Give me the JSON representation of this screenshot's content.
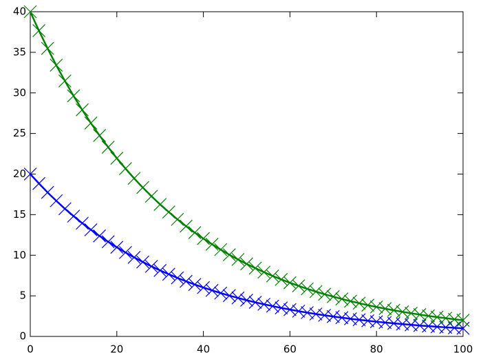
{
  "chart_data": {
    "type": "line",
    "x": [
      0,
      2,
      4,
      6,
      8,
      10,
      12,
      14,
      16,
      18,
      20,
      22,
      24,
      26,
      28,
      30,
      32,
      34,
      36,
      38,
      40,
      42,
      44,
      46,
      48,
      50,
      52,
      54,
      56,
      58,
      60,
      62,
      64,
      66,
      68,
      70,
      72,
      74,
      76,
      78,
      80,
      82,
      84,
      86,
      88,
      90,
      92,
      94,
      96,
      98,
      100
    ],
    "series": [
      {
        "color": "#0000ff",
        "marker": "x",
        "values": [
          20,
          18.84,
          17.74,
          16.71,
          15.73,
          14.82,
          13.95,
          13.14,
          12.38,
          11.66,
          10.98,
          10.34,
          9.74,
          9.17,
          8.63,
          8.13,
          7.66,
          7.21,
          6.79,
          6.4,
          6.02,
          5.67,
          5.34,
          5.03,
          4.74,
          4.46,
          4.2,
          3.96,
          3.73,
          3.51,
          3.31,
          3.11,
          2.93,
          2.76,
          2.6,
          2.45,
          2.31,
          2.17,
          2.05,
          1.93,
          1.81,
          1.71,
          1.61,
          1.52,
          1.43,
          1.34,
          1.27,
          1.19,
          1.12,
          1.06,
          1.0
        ]
      },
      {
        "color": "#008000",
        "marker": "x",
        "values": [
          40,
          37.67,
          35.48,
          33.41,
          31.47,
          29.63,
          27.91,
          26.28,
          24.75,
          23.31,
          21.95,
          20.67,
          19.47,
          18.34,
          17.27,
          16.26,
          15.32,
          14.42,
          13.58,
          12.79,
          12.05,
          11.35,
          10.69,
          10.06,
          9.48,
          8.93,
          8.41,
          7.92,
          7.45,
          7.02,
          6.61,
          6.23,
          5.86,
          5.52,
          5.2,
          4.9,
          4.61,
          4.34,
          4.09,
          3.85,
          3.63,
          3.42,
          3.22,
          3.03,
          2.85,
          2.69,
          2.53,
          2.38,
          2.25,
          2.11,
          1.99
        ]
      }
    ],
    "xlim": [
      0,
      100
    ],
    "xticks": [
      0,
      20,
      40,
      60,
      80,
      100
    ],
    "ylim": [
      0,
      40
    ],
    "yticks": [
      0,
      5,
      10,
      15,
      20,
      25,
      30,
      35,
      40
    ],
    "grid": false
  }
}
